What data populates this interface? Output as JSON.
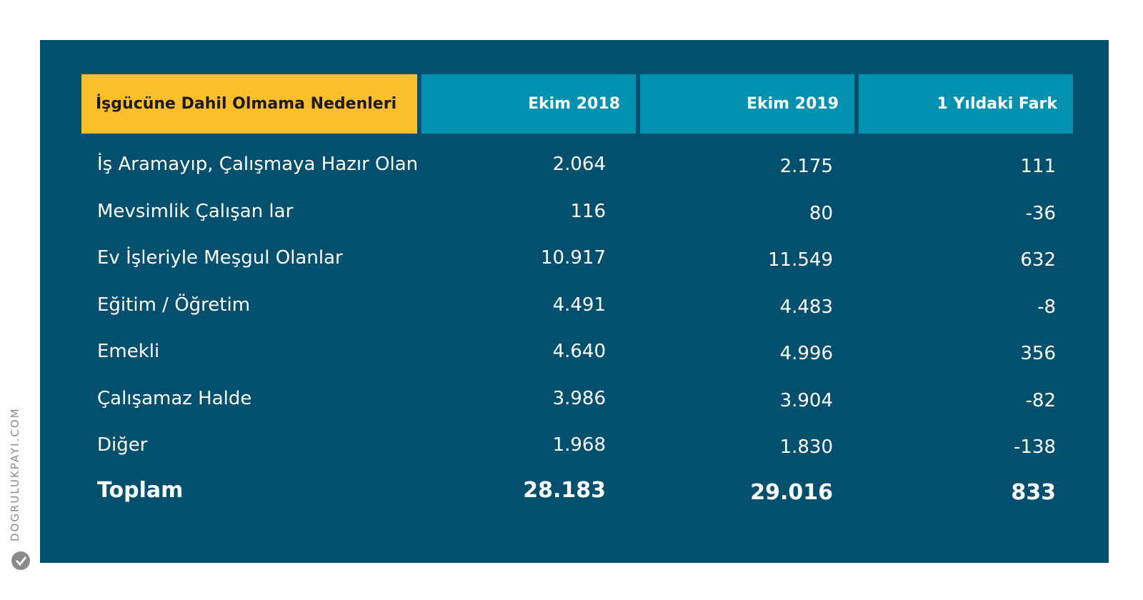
{
  "chart_data": {
    "type": "table",
    "columns": [
      "İşgücüne Dahil Olmama Nedenleri",
      "Ekim 2018",
      "Ekim 2019",
      "1 Yıldaki Fark"
    ],
    "rows": [
      {
        "label": "İş Aramayıp, Çalışmaya Hazır Olan",
        "v2018": "2.064",
        "v2019": "2.175",
        "diff": "111"
      },
      {
        "label": "Mevsimlik Çalışan lar",
        "v2018": "116",
        "v2019": "80",
        "diff": "-36"
      },
      {
        "label": "Ev İşleriyle Meşgul Olanlar",
        "v2018": "10.917",
        "v2019": "11.549",
        "diff": "632"
      },
      {
        "label": "Eğitim / Öğretim",
        "v2018": "4.491",
        "v2019": "4.483",
        "diff": "-8"
      },
      {
        "label": "Emekli",
        "v2018": "4.640",
        "v2019": "4.996",
        "diff": "356"
      },
      {
        "label": "Çalışamaz Halde",
        "v2018": "3.986",
        "v2019": "3.904",
        "diff": "-82"
      },
      {
        "label": "Diğer",
        "v2018": "1.968",
        "v2019": "1.830",
        "diff": "-138"
      }
    ],
    "total": {
      "label": "Toplam",
      "v2018": "28.183",
      "v2019": "29.016",
      "diff": "833"
    }
  },
  "credit": "DOGRULUKPAYI.COM",
  "colors": {
    "panel": "#02506e",
    "header_first": "#fbbf2e",
    "header_num": "#0391b0",
    "text": "#ffffff"
  }
}
